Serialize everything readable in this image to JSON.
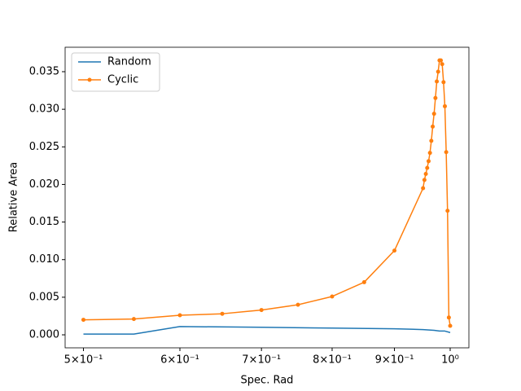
{
  "chart_data": {
    "type": "line",
    "xlabel": "Spec. Rad",
    "ylabel": "Relative Area",
    "xscale": "log",
    "xlim": [
      0.483,
      1.036
    ],
    "ylim": [
      -0.00173,
      0.03825
    ],
    "xticks": [
      {
        "value": 0.5,
        "label": "5×10⁻¹"
      },
      {
        "value": 0.6,
        "label": "6×10⁻¹"
      },
      {
        "value": 0.7,
        "label": "7×10⁻¹"
      },
      {
        "value": 0.8,
        "label": "8×10⁻¹"
      },
      {
        "value": 0.9,
        "label": "9×10⁻¹"
      },
      {
        "value": 1,
        "label": "10⁰"
      }
    ],
    "yticks": [
      {
        "value": 0,
        "label": "0.000"
      },
      0.005,
      {
        "value": 0.01,
        "label": "0.010"
      },
      0.015,
      {
        "value": 0.02,
        "label": "0.020"
      },
      0.025,
      {
        "value": 0.03,
        "label": "0.030"
      },
      0.035
    ],
    "legend": "upper left",
    "series": [
      {
        "name": "Random",
        "color": "#1f77b4",
        "marker": false,
        "x": [
          0.5,
          0.55,
          0.6,
          0.7,
          0.8,
          0.9,
          0.95,
          0.97,
          0.98,
          0.99,
          1.0
        ],
        "values": [
          0.0001,
          0.0001,
          0.0011,
          0.001,
          0.0009,
          0.0008,
          0.0007,
          0.0006,
          0.0005,
          0.0005,
          0.0003
        ]
      },
      {
        "name": "Cyclic",
        "color": "#ff7f0e",
        "marker": true,
        "x": [
          0.5,
          0.55,
          0.6,
          0.65,
          0.7,
          0.75,
          0.8,
          0.85,
          0.9,
          0.95,
          0.9525,
          0.955,
          0.9575,
          0.96,
          0.9625,
          0.965,
          0.9675,
          0.97,
          0.9725,
          0.975,
          0.9775,
          0.98,
          0.9825,
          0.985,
          0.9875,
          0.99,
          0.9925,
          0.995,
          0.9975,
          1.0
        ],
        "values": [
          0.002,
          0.0021,
          0.0026,
          0.0028,
          0.0033,
          0.004,
          0.0051,
          0.007,
          0.0112,
          0.0195,
          0.0206,
          0.0214,
          0.0222,
          0.0231,
          0.0242,
          0.0258,
          0.0277,
          0.0294,
          0.0315,
          0.0337,
          0.035,
          0.0365,
          0.0365,
          0.036,
          0.0336,
          0.0304,
          0.0243,
          0.0165,
          0.0023,
          0.0012
        ]
      }
    ]
  }
}
